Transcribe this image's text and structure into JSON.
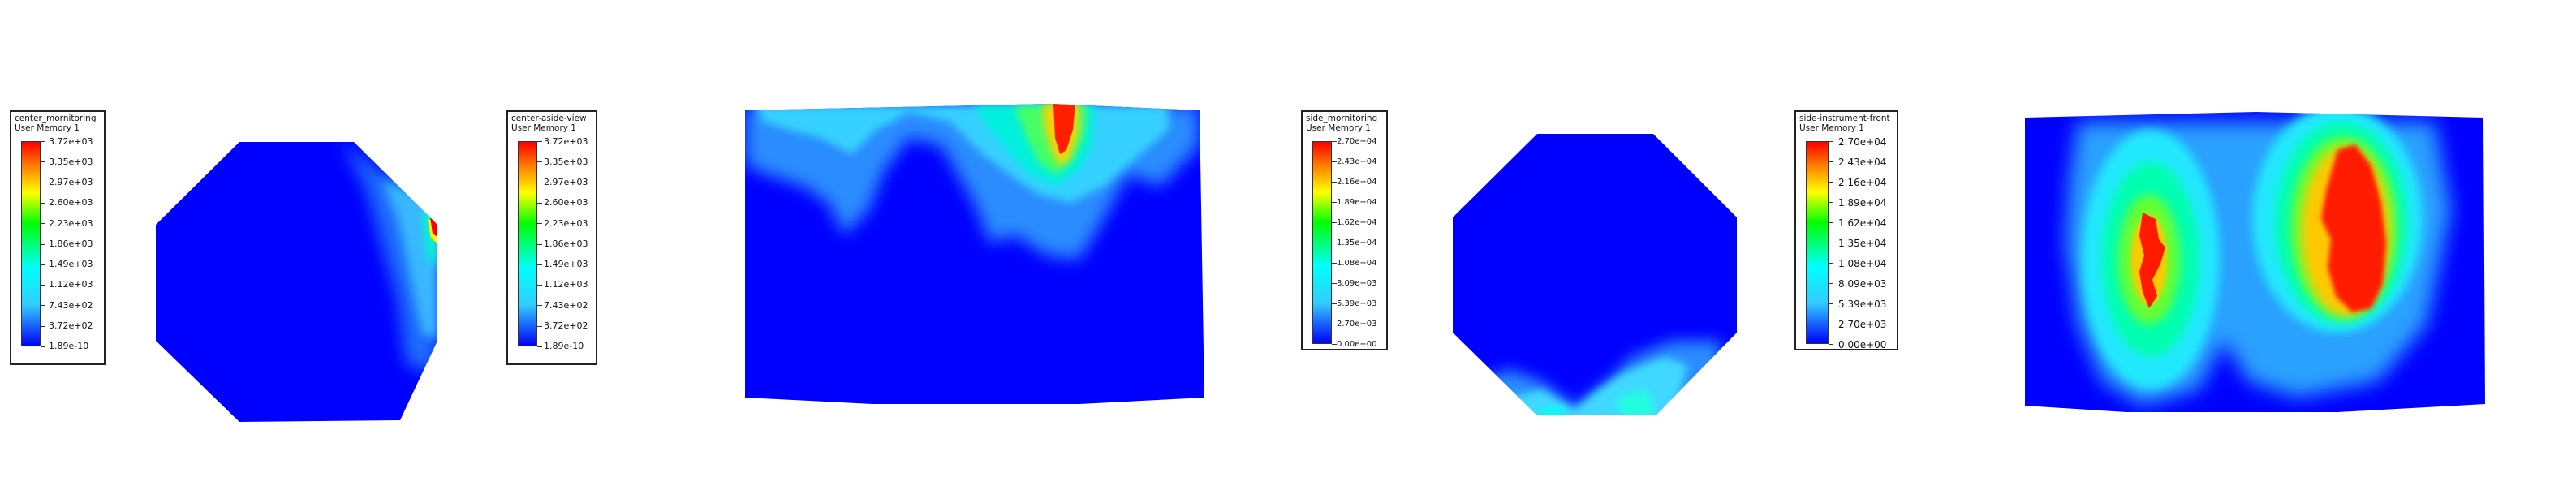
{
  "legends": [
    {
      "title": "center_mornitoring",
      "subtitle": "User Memory 1",
      "labels": [
        "3.72e+03",
        "3.35e+03",
        "2.97e+03",
        "2.60e+03",
        "2.23e+03",
        "1.86e+03",
        "1.49e+03",
        "1.12e+03",
        "7.43e+02",
        "3.72e+02",
        "1.89e-10"
      ]
    },
    {
      "title": "center-aside-view",
      "subtitle": "User Memory 1",
      "labels": [
        "3.72e+03",
        "3.35e+03",
        "2.97e+03",
        "2.60e+03",
        "2.23e+03",
        "1.86e+03",
        "1.49e+03",
        "1.12e+03",
        "7.43e+02",
        "3.72e+02",
        "1.89e-10"
      ]
    },
    {
      "title": "side_mornitoring",
      "subtitle": "User Memory 1",
      "labels": [
        "2.70e+04",
        "2.43e+04",
        "2.16e+04",
        "1.89e+04",
        "1.62e+04",
        "1.35e+04",
        "1.08e+04",
        "8.09e+03",
        "5.39e+03",
        "2.70e+03",
        "0.00e+00"
      ]
    },
    {
      "title": "side-instrument-front",
      "subtitle": "User Memory 1",
      "labels": [
        "2.70e+04",
        "2.43e+04",
        "2.16e+04",
        "1.89e+04",
        "1.62e+04",
        "1.35e+04",
        "1.08e+04",
        "8.09e+03",
        "5.39e+03",
        "2.70e+03",
        "0.00e+00"
      ]
    }
  ],
  "colormap": {
    "red": "#ff0000",
    "orange": "#ff8000",
    "yellow": "#ffff00",
    "green": "#00ff00",
    "cyan": "#00ffff",
    "light_blue": "#33ccff",
    "blue": "#0000ff"
  }
}
